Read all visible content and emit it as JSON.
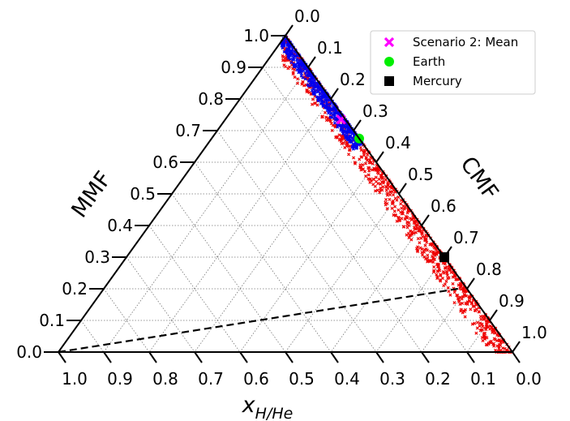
{
  "chart_data": {
    "type": "scatter",
    "subtype": "ternary",
    "axes": {
      "bottom": {
        "label": "x",
        "label_sub": "H/He",
        "ticks": [
          "1.0",
          "0.9",
          "0.8",
          "0.7",
          "0.6",
          "0.5",
          "0.4",
          "0.3",
          "0.2",
          "0.1",
          "0.0"
        ]
      },
      "left": {
        "label": "MMF",
        "ticks": [
          "0.0",
          "0.1",
          "0.2",
          "0.3",
          "0.4",
          "0.5",
          "0.6",
          "0.7",
          "0.8",
          "0.9",
          "1.0"
        ]
      },
      "right": {
        "label": "CMF",
        "ticks": [
          "0.0",
          "0.1",
          "0.2",
          "0.3",
          "0.4",
          "0.5",
          "0.6",
          "0.7",
          "0.8",
          "0.9",
          "1.0"
        ]
      }
    },
    "range": [
      0,
      1
    ],
    "grid": true,
    "grid_step": 0.1,
    "legend_position": "top-right",
    "series": [
      {
        "name": "Scenario 2: Mean",
        "marker": "x",
        "color": "#ff00ff",
        "points": [
          {
            "cmf": 0.255,
            "mmf": 0.735,
            "xhhe": 0.01
          }
        ]
      },
      {
        "name": "Earth",
        "marker": "circle",
        "color": "#00ee00",
        "points": [
          {
            "cmf": 0.325,
            "mmf": 0.675,
            "xhhe": 0.0
          }
        ]
      },
      {
        "name": "Mercury",
        "marker": "square",
        "color": "#000000",
        "points": [
          {
            "cmf": 0.7,
            "mmf": 0.3,
            "xhhe": 0.0
          }
        ]
      }
    ],
    "sample_bands": [
      {
        "color": "#ee0000",
        "cmf_from": 0.0,
        "cmf_to": 1.0,
        "xhhe_max": 0.05,
        "points": 900
      },
      {
        "color": "#0000ee",
        "cmf_from": 0.0,
        "cmf_to": 0.34,
        "xhhe_max": 0.03,
        "points": 500
      }
    ],
    "dashed_line": {
      "from": {
        "cmf": 0.0,
        "mmf": 0.0,
        "xhhe": 1.0
      },
      "to": {
        "cmf": 0.78,
        "mmf": 0.2,
        "xhhe": 0.02
      }
    }
  }
}
